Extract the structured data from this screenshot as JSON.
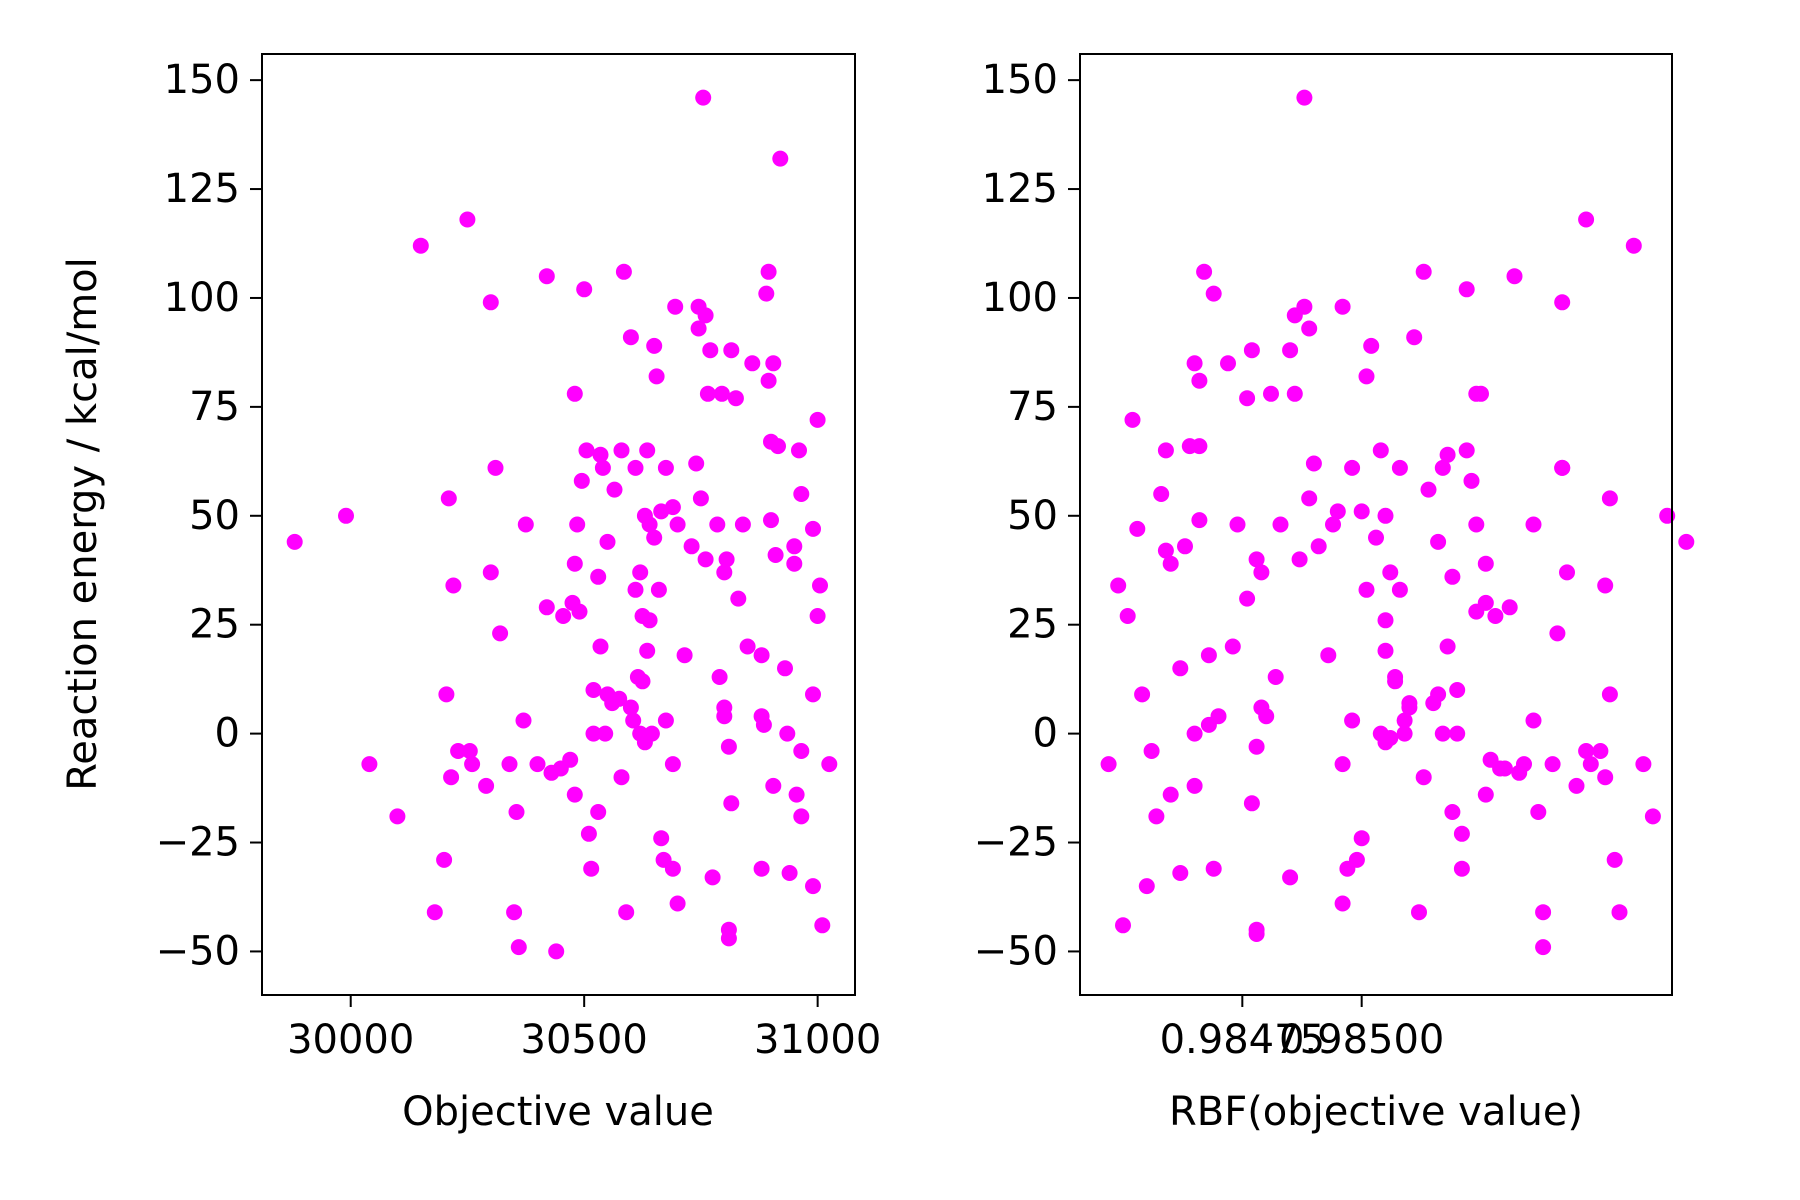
{
  "chart_data": [
    {
      "type": "scatter",
      "xlabel": "Objective value",
      "ylabel": "Reaction energy / kcal/mol",
      "xlim": [
        29810,
        31080
      ],
      "ylim": [
        -60,
        156
      ],
      "xticks": [
        30000,
        30500,
        31000
      ],
      "xtick_labels": [
        "30000",
        "30500",
        "31000"
      ],
      "yticks": [
        -50,
        -25,
        0,
        25,
        50,
        75,
        100,
        125,
        150
      ],
      "ytick_labels": [
        "−50",
        "−25",
        "0",
        "25",
        "50",
        "75",
        "100",
        "125",
        "150"
      ],
      "marker_color": "#ff00ff",
      "grid": false,
      "legend": "none",
      "points": [
        [
          29880,
          44
        ],
        [
          29990,
          50
        ],
        [
          30040,
          -7
        ],
        [
          30100,
          -19
        ],
        [
          30150,
          112
        ],
        [
          30180,
          -41
        ],
        [
          30200,
          -29
        ],
        [
          30205,
          9
        ],
        [
          30210,
          54
        ],
        [
          30215,
          -10
        ],
        [
          30220,
          34
        ],
        [
          30230,
          -4
        ],
        [
          30250,
          118
        ],
        [
          30255,
          -4
        ],
        [
          30260,
          -7
        ],
        [
          30290,
          -12
        ],
        [
          30300,
          99
        ],
        [
          30300,
          37
        ],
        [
          30310,
          61
        ],
        [
          30320,
          23
        ],
        [
          30340,
          -7
        ],
        [
          30350,
          -41
        ],
        [
          30355,
          -18
        ],
        [
          30360,
          -49
        ],
        [
          30370,
          3
        ],
        [
          30375,
          48
        ],
        [
          30400,
          -7
        ],
        [
          30420,
          29
        ],
        [
          30420,
          105
        ],
        [
          30430,
          -9
        ],
        [
          30440,
          -50
        ],
        [
          30450,
          -8
        ],
        [
          30455,
          27
        ],
        [
          30470,
          -6
        ],
        [
          30475,
          30
        ],
        [
          30480,
          39
        ],
        [
          30480,
          78
        ],
        [
          30480,
          -14
        ],
        [
          30485,
          48
        ],
        [
          30490,
          28
        ],
        [
          30495,
          58
        ],
        [
          30500,
          102
        ],
        [
          30505,
          65
        ],
        [
          30510,
          -23
        ],
        [
          30515,
          -31
        ],
        [
          30520,
          10
        ],
        [
          30520,
          0
        ],
        [
          30530,
          -18
        ],
        [
          30530,
          36
        ],
        [
          30535,
          64
        ],
        [
          30535,
          20
        ],
        [
          30540,
          61
        ],
        [
          30545,
          0
        ],
        [
          30550,
          9
        ],
        [
          30550,
          44
        ],
        [
          30560,
          7
        ],
        [
          30565,
          56
        ],
        [
          30575,
          8
        ],
        [
          30580,
          -10
        ],
        [
          30580,
          65
        ],
        [
          30585,
          106
        ],
        [
          30590,
          -41
        ],
        [
          30600,
          91
        ],
        [
          30600,
          6
        ],
        [
          30605,
          3
        ],
        [
          30610,
          33
        ],
        [
          30610,
          61
        ],
        [
          30615,
          13
        ],
        [
          30620,
          37
        ],
        [
          30620,
          0
        ],
        [
          30625,
          27
        ],
        [
          30625,
          12
        ],
        [
          30630,
          -2
        ],
        [
          30630,
          50
        ],
        [
          30635,
          65
        ],
        [
          30635,
          19
        ],
        [
          30640,
          48
        ],
        [
          30640,
          26
        ],
        [
          30645,
          0
        ],
        [
          30650,
          45
        ],
        [
          30650,
          89
        ],
        [
          30655,
          82
        ],
        [
          30660,
          33
        ],
        [
          30665,
          -24
        ],
        [
          30665,
          51
        ],
        [
          30670,
          -29
        ],
        [
          30675,
          3
        ],
        [
          30675,
          61
        ],
        [
          30690,
          -31
        ],
        [
          30690,
          52
        ],
        [
          30690,
          -7
        ],
        [
          30695,
          98
        ],
        [
          30700,
          -39
        ],
        [
          30700,
          48
        ],
        [
          30715,
          18
        ],
        [
          30730,
          43
        ],
        [
          30740,
          62
        ],
        [
          30745,
          93
        ],
        [
          30745,
          98
        ],
        [
          30750,
          54
        ],
        [
          30755,
          146
        ],
        [
          30760,
          96
        ],
        [
          30760,
          40
        ],
        [
          30765,
          78
        ],
        [
          30770,
          88
        ],
        [
          30775,
          -33
        ],
        [
          30785,
          48
        ],
        [
          30790,
          13
        ],
        [
          30795,
          78
        ],
        [
          30800,
          6
        ],
        [
          30800,
          4
        ],
        [
          30800,
          37
        ],
        [
          30805,
          40
        ],
        [
          30810,
          -3
        ],
        [
          30810,
          -45
        ],
        [
          30810,
          -47
        ],
        [
          30815,
          -16
        ],
        [
          30815,
          88
        ],
        [
          30825,
          77
        ],
        [
          30830,
          31
        ],
        [
          30840,
          48
        ],
        [
          30850,
          20
        ],
        [
          30860,
          85
        ],
        [
          30880,
          4
        ],
        [
          30880,
          18
        ],
        [
          30880,
          -31
        ],
        [
          30885,
          2
        ],
        [
          30890,
          101
        ],
        [
          30895,
          106
        ],
        [
          30895,
          81
        ],
        [
          30900,
          49
        ],
        [
          30900,
          67
        ],
        [
          30905,
          -12
        ],
        [
          30905,
          85
        ],
        [
          30910,
          41
        ],
        [
          30915,
          66
        ],
        [
          30920,
          132
        ],
        [
          30930,
          15
        ],
        [
          30935,
          0
        ],
        [
          30940,
          -32
        ],
        [
          30950,
          39
        ],
        [
          30950,
          43
        ],
        [
          30955,
          -14
        ],
        [
          30960,
          65
        ],
        [
          30965,
          55
        ],
        [
          30965,
          -19
        ],
        [
          30965,
          -4
        ],
        [
          30990,
          -35
        ],
        [
          30990,
          9
        ],
        [
          30990,
          47
        ],
        [
          31000,
          27
        ],
        [
          31000,
          72
        ],
        [
          31005,
          34
        ],
        [
          31010,
          -44
        ],
        [
          31025,
          -7
        ]
      ]
    },
    {
      "type": "scatter",
      "xlabel": "RBF(objective value)",
      "ylabel": "",
      "xlim": [
        0.98441,
        0.98565
      ],
      "ylim": [
        -60,
        156
      ],
      "xticks": [
        0.98475,
        0.985
      ],
      "xtick_labels": [
        "0.98475",
        "0.98500"
      ],
      "yticks": [
        -50,
        -25,
        0,
        25,
        50,
        75,
        100,
        125,
        150
      ],
      "ytick_labels": [
        "−50",
        "−25",
        "0",
        "25",
        "50",
        "75",
        "100",
        "125",
        "150"
      ],
      "marker_color": "#ff00ff",
      "grid": false,
      "legend": "none",
      "points": [
        [
          0.98447,
          -7
        ],
        [
          0.98449,
          34
        ],
        [
          0.9845,
          -44
        ],
        [
          0.98451,
          27
        ],
        [
          0.98452,
          72
        ],
        [
          0.98453,
          47
        ],
        [
          0.98454,
          9
        ],
        [
          0.98455,
          -35
        ],
        [
          0.98456,
          -4
        ],
        [
          0.98457,
          -19
        ],
        [
          0.98458,
          55
        ],
        [
          0.98459,
          65
        ],
        [
          0.98459,
          42
        ],
        [
          0.9846,
          -14
        ],
        [
          0.9846,
          39
        ],
        [
          0.98462,
          -32
        ],
        [
          0.98462,
          15
        ],
        [
          0.98463,
          43
        ],
        [
          0.98464,
          66
        ],
        [
          0.98465,
          0
        ],
        [
          0.98465,
          85
        ],
        [
          0.98465,
          -12
        ],
        [
          0.98466,
          49
        ],
        [
          0.98466,
          66
        ],
        [
          0.98466,
          81
        ],
        [
          0.98467,
          106
        ],
        [
          0.98468,
          2
        ],
        [
          0.98468,
          18
        ],
        [
          0.98469,
          -31
        ],
        [
          0.98469,
          101
        ],
        [
          0.9847,
          4
        ],
        [
          0.98472,
          85
        ],
        [
          0.98473,
          20
        ],
        [
          0.98474,
          48
        ],
        [
          0.98476,
          77
        ],
        [
          0.98476,
          31
        ],
        [
          0.98477,
          88
        ],
        [
          0.98477,
          -16
        ],
        [
          0.98478,
          -45
        ],
        [
          0.98478,
          -46
        ],
        [
          0.98478,
          -3
        ],
        [
          0.98478,
          40
        ],
        [
          0.98479,
          6
        ],
        [
          0.98479,
          37
        ],
        [
          0.9848,
          4
        ],
        [
          0.98481,
          78
        ],
        [
          0.98482,
          13
        ],
        [
          0.98483,
          48
        ],
        [
          0.98485,
          -33
        ],
        [
          0.98485,
          88
        ],
        [
          0.98486,
          78
        ],
        [
          0.98486,
          96
        ],
        [
          0.98487,
          40
        ],
        [
          0.98488,
          146
        ],
        [
          0.98488,
          98
        ],
        [
          0.98489,
          93
        ],
        [
          0.98489,
          54
        ],
        [
          0.9849,
          62
        ],
        [
          0.98491,
          43
        ],
        [
          0.98493,
          18
        ],
        [
          0.98494,
          48
        ],
        [
          0.98495,
          51
        ],
        [
          0.98496,
          -7
        ],
        [
          0.98496,
          98
        ],
        [
          0.98496,
          -39
        ],
        [
          0.98497,
          -31
        ],
        [
          0.98498,
          3
        ],
        [
          0.98498,
          61
        ],
        [
          0.98499,
          -29
        ],
        [
          0.985,
          -24
        ],
        [
          0.985,
          51
        ],
        [
          0.98501,
          82
        ],
        [
          0.98501,
          33
        ],
        [
          0.98502,
          89
        ],
        [
          0.98503,
          45
        ],
        [
          0.98504,
          0
        ],
        [
          0.98504,
          65
        ],
        [
          0.98505,
          -2
        ],
        [
          0.98505,
          19
        ],
        [
          0.98505,
          26
        ],
        [
          0.98505,
          50
        ],
        [
          0.98506,
          -1
        ],
        [
          0.98506,
          37
        ],
        [
          0.98507,
          12
        ],
        [
          0.98507,
          13
        ],
        [
          0.98508,
          61
        ],
        [
          0.98508,
          33
        ],
        [
          0.98509,
          3
        ],
        [
          0.98509,
          0
        ],
        [
          0.9851,
          6
        ],
        [
          0.9851,
          7
        ],
        [
          0.98511,
          91
        ],
        [
          0.98512,
          -41
        ],
        [
          0.98513,
          -10
        ],
        [
          0.98513,
          106
        ],
        [
          0.98514,
          56
        ],
        [
          0.98515,
          7
        ],
        [
          0.98516,
          9
        ],
        [
          0.98516,
          44
        ],
        [
          0.98517,
          0
        ],
        [
          0.98517,
          61
        ],
        [
          0.98518,
          64
        ],
        [
          0.98518,
          20
        ],
        [
          0.98519,
          36
        ],
        [
          0.98519,
          -18
        ],
        [
          0.9852,
          10
        ],
        [
          0.9852,
          0
        ],
        [
          0.98521,
          -23
        ],
        [
          0.98521,
          -31
        ],
        [
          0.98522,
          65
        ],
        [
          0.98522,
          102
        ],
        [
          0.98523,
          58
        ],
        [
          0.98524,
          28
        ],
        [
          0.98524,
          48
        ],
        [
          0.98524,
          78
        ],
        [
          0.98525,
          78
        ],
        [
          0.98526,
          -14
        ],
        [
          0.98526,
          39
        ],
        [
          0.98526,
          30
        ],
        [
          0.98527,
          -6
        ],
        [
          0.98528,
          27
        ],
        [
          0.98529,
          -8
        ],
        [
          0.9853,
          -8
        ],
        [
          0.98531,
          29
        ],
        [
          0.98532,
          105
        ],
        [
          0.98533,
          -9
        ],
        [
          0.98534,
          -7
        ],
        [
          0.98536,
          3
        ],
        [
          0.98536,
          48
        ],
        [
          0.98537,
          -18
        ],
        [
          0.98538,
          -49
        ],
        [
          0.98538,
          -41
        ],
        [
          0.9854,
          -7
        ],
        [
          0.98541,
          23
        ],
        [
          0.98542,
          61
        ],
        [
          0.98542,
          99
        ],
        [
          0.98542,
          61
        ],
        [
          0.98543,
          37
        ],
        [
          0.98545,
          -12
        ],
        [
          0.98547,
          -4
        ],
        [
          0.98547,
          118
        ],
        [
          0.98548,
          -7
        ],
        [
          0.9855,
          -4
        ],
        [
          0.98551,
          -10
        ],
        [
          0.98551,
          34
        ],
        [
          0.98552,
          54
        ],
        [
          0.98552,
          9
        ],
        [
          0.98553,
          -29
        ],
        [
          0.98554,
          -41
        ],
        [
          0.98557,
          112
        ],
        [
          0.98559,
          -7
        ],
        [
          0.98561,
          -19
        ],
        [
          0.98564,
          50
        ],
        [
          0.98568,
          44
        ]
      ]
    }
  ]
}
